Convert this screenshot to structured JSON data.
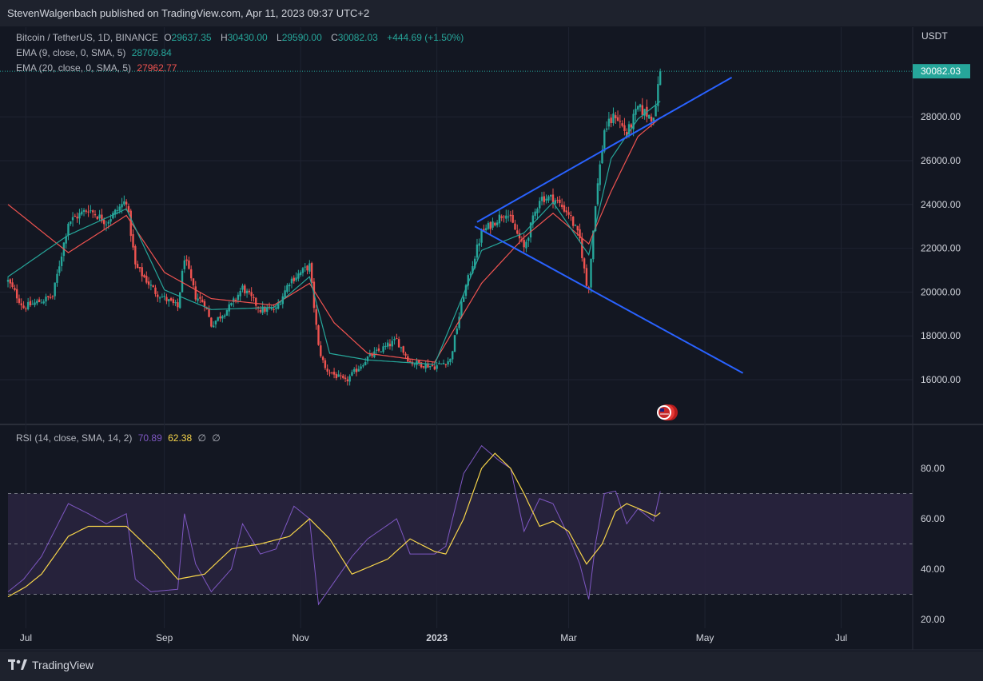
{
  "header": {
    "published": "StevenWalgenbach published on TradingView.com, Apr 11, 2023 09:37 UTC+2"
  },
  "legend": {
    "symbol": "Bitcoin / TetherUS, 1D, BINANCE",
    "o_label": "O",
    "o_value": "29637.35",
    "h_label": "H",
    "h_value": "30430.00",
    "l_label": "L",
    "l_value": "29590.00",
    "c_label": "C",
    "c_value": "30082.03",
    "change": "+444.69 (+1.50%)",
    "ema9_label": "EMA (9, close, 0, SMA, 5)",
    "ema9_value": "28709.84",
    "ema20_label": "EMA (20, close, 0, SMA, 5)",
    "ema20_value": "27962.77",
    "rsi_label": "RSI (14, close, SMA, 14, 2)",
    "rsi_value": "70.89",
    "rsi_ma_value": "62.38",
    "rsi_extra1": "∅",
    "rsi_extra2": "∅"
  },
  "footer": {
    "brand": "TradingView"
  },
  "colors": {
    "background": "#131722",
    "up": "#26a69a",
    "down": "#ef5350",
    "ema9": "#26a69a",
    "ema20": "#ef5350",
    "trendline": "#2962ff",
    "rsi": "#7e57c2",
    "rsi_ma": "#f7d54a",
    "rsi_band": "#2a2540"
  },
  "chart_data": [
    {
      "type": "candlestick",
      "title": "Bitcoin / TetherUS, 1D, BINANCE",
      "y_axis_unit": "USDT",
      "y_ticks": [
        16000,
        18000,
        20000,
        22000,
        24000,
        26000,
        28000
      ],
      "y_tick_labels": [
        "16000.00",
        "18000.00",
        "20000.00",
        "22000.00",
        "24000.00",
        "26000.00",
        "28000.00"
      ],
      "ylim": [
        14000,
        30500
      ],
      "last_price": 30082.03,
      "last_price_label": "30082.03",
      "x_tick_labels": [
        "Jul",
        "Sep",
        "Nov",
        "2023",
        "Mar",
        "May",
        "Jul"
      ],
      "x_tick_dates": [
        "2022-07-01",
        "2022-09-01",
        "2022-11-01",
        "2023-01-01",
        "2023-03-01",
        "2023-05-01",
        "2023-07-01"
      ],
      "x_range": [
        "2022-06-23",
        "2023-08-02"
      ],
      "close_series_keypoints": [
        [
          "2022-06-23",
          20500
        ],
        [
          "2022-06-30",
          19300
        ],
        [
          "2022-07-13",
          19800
        ],
        [
          "2022-07-20",
          23200
        ],
        [
          "2022-07-29",
          23800
        ],
        [
          "2022-08-06",
          23200
        ],
        [
          "2022-08-15",
          24200
        ],
        [
          "2022-08-19",
          21200
        ],
        [
          "2022-08-28",
          20000
        ],
        [
          "2022-09-07",
          19300
        ],
        [
          "2022-09-10",
          21600
        ],
        [
          "2022-09-15",
          19800
        ],
        [
          "2022-09-19",
          19500
        ],
        [
          "2022-09-22",
          18500
        ],
        [
          "2022-10-01",
          19400
        ],
        [
          "2022-10-06",
          20200
        ],
        [
          "2022-10-14",
          19200
        ],
        [
          "2022-10-21",
          19200
        ],
        [
          "2022-10-27",
          20500
        ],
        [
          "2022-11-05",
          21200
        ],
        [
          "2022-11-09",
          17500
        ],
        [
          "2022-11-12",
          16500
        ],
        [
          "2022-11-21",
          15900
        ],
        [
          "2022-12-01",
          17000
        ],
        [
          "2022-12-14",
          17800
        ],
        [
          "2022-12-20",
          16800
        ],
        [
          "2022-12-31",
          16600
        ],
        [
          "2023-01-07",
          16900
        ],
        [
          "2023-01-13",
          19900
        ],
        [
          "2023-01-21",
          22700
        ],
        [
          "2023-02-01",
          23700
        ],
        [
          "2023-02-09",
          22000
        ],
        [
          "2023-02-16",
          24300
        ],
        [
          "2023-02-22",
          24300
        ],
        [
          "2023-03-01",
          23600
        ],
        [
          "2023-03-06",
          22400
        ],
        [
          "2023-03-09",
          20300
        ],
        [
          "2023-03-10",
          20300
        ],
        [
          "2023-03-13",
          24100
        ],
        [
          "2023-03-17",
          27400
        ],
        [
          "2023-03-22",
          28100
        ],
        [
          "2023-03-27",
          27200
        ],
        [
          "2023-04-01",
          28400
        ],
        [
          "2023-04-07",
          28000
        ],
        [
          "2023-04-09",
          28300
        ],
        [
          "2023-04-10",
          29637
        ],
        [
          "2023-04-11",
          30082
        ]
      ],
      "ema9_keypoints": [
        [
          "2022-06-23",
          20700
        ],
        [
          "2022-07-20",
          22600
        ],
        [
          "2022-08-15",
          23800
        ],
        [
          "2022-09-01",
          20100
        ],
        [
          "2022-09-22",
          19200
        ],
        [
          "2022-10-20",
          19300
        ],
        [
          "2022-11-05",
          20700
        ],
        [
          "2022-11-14",
          17200
        ],
        [
          "2022-12-01",
          16900
        ],
        [
          "2022-12-31",
          16700
        ],
        [
          "2023-01-21",
          21900
        ],
        [
          "2023-02-09",
          22700
        ],
        [
          "2023-02-22",
          24100
        ],
        [
          "2023-03-10",
          21700
        ],
        [
          "2023-03-20",
          26100
        ],
        [
          "2023-04-01",
          27900
        ],
        [
          "2023-04-11",
          28710
        ]
      ],
      "ema20_keypoints": [
        [
          "2022-06-23",
          24000
        ],
        [
          "2022-07-20",
          21800
        ],
        [
          "2022-08-15",
          23500
        ],
        [
          "2022-09-01",
          20900
        ],
        [
          "2022-09-22",
          19700
        ],
        [
          "2022-10-20",
          19400
        ],
        [
          "2022-11-05",
          20400
        ],
        [
          "2022-11-16",
          18600
        ],
        [
          "2022-12-01",
          17200
        ],
        [
          "2022-12-31",
          16800
        ],
        [
          "2023-01-21",
          20400
        ],
        [
          "2023-02-09",
          22500
        ],
        [
          "2023-02-22",
          23600
        ],
        [
          "2023-03-10",
          22200
        ],
        [
          "2023-03-20",
          24600
        ],
        [
          "2023-04-01",
          27100
        ],
        [
          "2023-04-11",
          27960
        ]
      ],
      "trendlines": [
        {
          "name": "upper",
          "from": [
            "2023-01-19",
            23200
          ],
          "to": [
            "2023-05-13",
            29800
          ]
        },
        {
          "name": "lower",
          "from": [
            "2023-01-18",
            23000
          ],
          "to": [
            "2023-05-18",
            16300
          ]
        }
      ]
    },
    {
      "type": "line",
      "title": "RSI (14, close, SMA, 14, 2)",
      "y_ticks": [
        20,
        40,
        60,
        80
      ],
      "y_tick_labels": [
        "20.00",
        "40.00",
        "60.00",
        "80.00"
      ],
      "ylim": [
        16,
        94
      ],
      "band": [
        30,
        70
      ],
      "midline": 50,
      "series": [
        {
          "key": "rsi",
          "values_keypoints": [
            [
              "2022-06-23",
              31
            ],
            [
              "2022-06-30",
              36
            ],
            [
              "2022-07-08",
              45
            ],
            [
              "2022-07-20",
              66
            ],
            [
              "2022-07-29",
              62
            ],
            [
              "2022-08-06",
              58
            ],
            [
              "2022-08-15",
              62
            ],
            [
              "2022-08-19",
              36
            ],
            [
              "2022-08-26",
              31
            ],
            [
              "2022-09-07",
              32
            ],
            [
              "2022-09-10",
              62
            ],
            [
              "2022-09-15",
              42
            ],
            [
              "2022-09-22",
              31
            ],
            [
              "2022-10-01",
              40
            ],
            [
              "2022-10-06",
              58
            ],
            [
              "2022-10-14",
              46
            ],
            [
              "2022-10-21",
              48
            ],
            [
              "2022-10-29",
              65
            ],
            [
              "2022-11-05",
              60
            ],
            [
              "2022-11-09",
              26
            ],
            [
              "2022-11-13",
              31
            ],
            [
              "2022-11-24",
              45
            ],
            [
              "2022-12-01",
              52
            ],
            [
              "2022-12-14",
              60
            ],
            [
              "2022-12-20",
              46
            ],
            [
              "2022-12-31",
              46
            ],
            [
              "2023-01-05",
              49
            ],
            [
              "2023-01-13",
              78
            ],
            [
              "2023-01-21",
              89
            ],
            [
              "2023-01-29",
              83
            ],
            [
              "2023-02-03",
              80
            ],
            [
              "2023-02-09",
              55
            ],
            [
              "2023-02-16",
              68
            ],
            [
              "2023-02-22",
              66
            ],
            [
              "2023-03-01",
              53
            ],
            [
              "2023-03-06",
              42
            ],
            [
              "2023-03-10",
              28
            ],
            [
              "2023-03-13",
              50
            ],
            [
              "2023-03-17",
              70
            ],
            [
              "2023-03-22",
              71
            ],
            [
              "2023-03-27",
              58
            ],
            [
              "2023-04-01",
              64
            ],
            [
              "2023-04-08",
              59
            ],
            [
              "2023-04-11",
              70.89
            ]
          ]
        },
        {
          "key": "rsi_ma",
          "values_keypoints": [
            [
              "2022-06-23",
              29
            ],
            [
              "2022-07-01",
              33
            ],
            [
              "2022-07-08",
              38
            ],
            [
              "2022-07-20",
              53
            ],
            [
              "2022-07-29",
              57
            ],
            [
              "2022-08-15",
              57
            ],
            [
              "2022-08-29",
              45
            ],
            [
              "2022-09-07",
              36
            ],
            [
              "2022-09-19",
              38
            ],
            [
              "2022-10-01",
              48
            ],
            [
              "2022-10-14",
              50
            ],
            [
              "2022-10-27",
              53
            ],
            [
              "2022-11-05",
              60
            ],
            [
              "2022-11-14",
              52
            ],
            [
              "2022-11-24",
              38
            ],
            [
              "2022-12-10",
              44
            ],
            [
              "2022-12-20",
              52
            ],
            [
              "2022-12-31",
              47
            ],
            [
              "2023-01-05",
              46
            ],
            [
              "2023-01-13",
              60
            ],
            [
              "2023-01-21",
              80
            ],
            [
              "2023-01-27",
              86
            ],
            [
              "2023-02-03",
              80
            ],
            [
              "2023-02-09",
              70
            ],
            [
              "2023-02-16",
              57
            ],
            [
              "2023-02-22",
              59
            ],
            [
              "2023-03-01",
              55
            ],
            [
              "2023-03-09",
              42
            ],
            [
              "2023-03-16",
              50
            ],
            [
              "2023-03-22",
              63
            ],
            [
              "2023-03-27",
              66
            ],
            [
              "2023-04-04",
              63
            ],
            [
              "2023-04-09",
              61
            ],
            [
              "2023-04-11",
              62.38
            ]
          ]
        }
      ]
    }
  ]
}
